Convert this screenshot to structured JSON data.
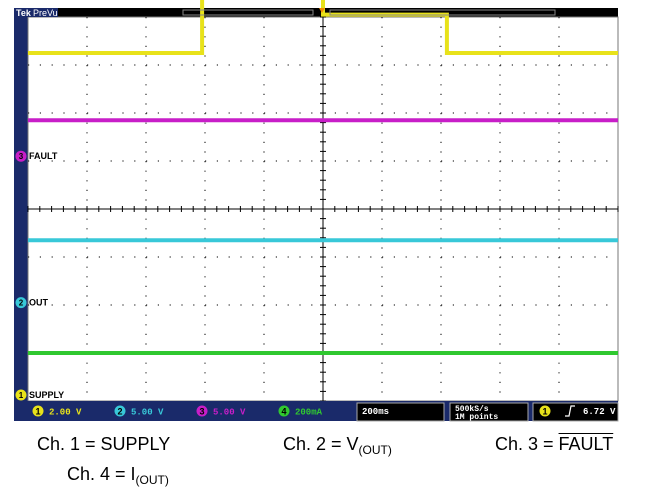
{
  "scope": {
    "brand": "Tek",
    "mode": "PreVu",
    "timebase": "200ms",
    "sample_rate": "500kS/s",
    "record_length": "1M points",
    "trigger": {
      "channel": "1",
      "slope": "rising",
      "level": "6.72 V"
    },
    "colors": {
      "ch1": "#e8e21a",
      "ch2": "#38c8d8",
      "ch3": "#c81ec8",
      "ch4": "#30c830",
      "grid": "#000000",
      "bg": "#ffffff"
    },
    "channel_settings": [
      {
        "num": "1",
        "scale": "2.00 V"
      },
      {
        "num": "2",
        "scale": "5.00 V"
      },
      {
        "num": "3",
        "scale": "5.00 V"
      },
      {
        "num": "4",
        "scale": "200mA"
      }
    ],
    "markers": [
      {
        "num": "3",
        "label": "FAULT"
      },
      {
        "num": "2",
        "label": "OUT"
      },
      {
        "num": "4",
        "label": "IOUT"
      },
      {
        "num": "1",
        "label": "SUPPLY"
      }
    ]
  },
  "chart_data": {
    "type": "line",
    "x_divisions": 10,
    "y_divisions": 8,
    "grid": true,
    "series": [
      {
        "channel": "1",
        "points": [
          [
            0,
            3.25
          ],
          [
            2.95,
            3.25
          ],
          [
            2.95,
            4.6
          ],
          [
            5.0,
            4.6
          ],
          [
            5.0,
            4.05
          ],
          [
            7.1,
            4.05
          ],
          [
            7.1,
            3.25
          ],
          [
            10,
            3.25
          ]
        ]
      },
      {
        "channel": "3",
        "points": [
          [
            0,
            1.85
          ],
          [
            10,
            1.85
          ]
        ]
      },
      {
        "channel": "2",
        "points": [
          [
            0,
            -0.65
          ],
          [
            10,
            -0.65
          ]
        ]
      },
      {
        "channel": "4",
        "points": [
          [
            0,
            -3.0
          ],
          [
            10,
            -3.0
          ]
        ]
      }
    ]
  },
  "caption": {
    "ch1": "Ch. 1 = SUPPLY",
    "ch2_prefix": "Ch. 2 = V",
    "ch2_sub": "(OUT)",
    "ch3_prefix": "Ch. 3 = ",
    "ch3_over": "FAULT",
    "ch4_prefix": "Ch. 4 = I",
    "ch4_sub": "(OUT)"
  }
}
